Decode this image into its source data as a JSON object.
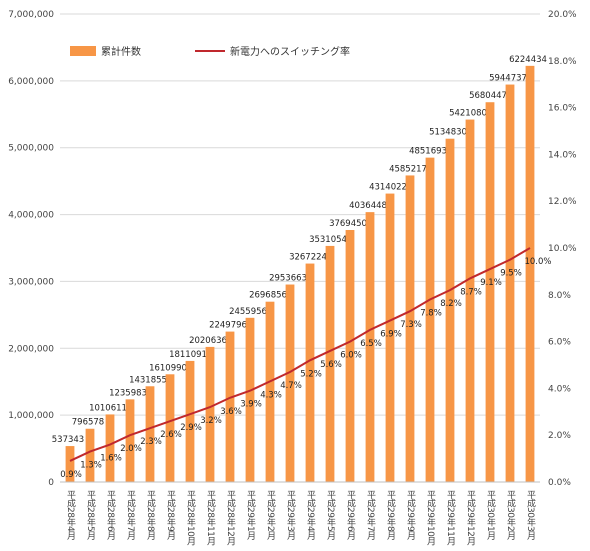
{
  "chart_data": {
    "type": "bar",
    "categories": [
      "平成28年4月",
      "平成28年5月",
      "平成28年6月",
      "平成28年7月",
      "平成28年8月",
      "平成28年9月",
      "平成28年10月",
      "平成28年11月",
      "平成28年12月",
      "平成29年1月",
      "平成29年2月",
      "平成29年3月",
      "平成29年4月",
      "平成29年5月",
      "平成29年6月",
      "平成29年7月",
      "平成29年8月",
      "平成29年9月",
      "平成29年10月",
      "平成29年11月",
      "平成29年12月",
      "平成30年1月",
      "平成30年2月",
      "平成30年3月"
    ],
    "series": [
      {
        "name": "累計件数",
        "type": "bar",
        "axis": "left",
        "color": "#F79646",
        "values": [
          537343,
          796578,
          1010611,
          1235983,
          1431855,
          1610990,
          1811091,
          2020636,
          2249796,
          2455956,
          2696856,
          2953663,
          3267224,
          3531054,
          3769450,
          4036448,
          4314022,
          4585217,
          4851693,
          5134830,
          5421080,
          5680447,
          5944737,
          6224434
        ],
        "labels": [
          "537343",
          "796578",
          "1010611",
          "1235983",
          "1431855",
          "1610990",
          "1811091",
          "2020636",
          "2249796",
          "2455956",
          "2696856",
          "2953663",
          "3267224",
          "3531054",
          "3769450",
          "4036448",
          "4314022",
          "4585217",
          "4851693",
          "5134830",
          "5421080",
          "5680447",
          "5944737",
          "6224434"
        ]
      },
      {
        "name": "新電力へのスイッチング率",
        "type": "line",
        "axis": "right",
        "color": "#C0282D",
        "values": [
          0.9,
          1.3,
          1.6,
          2.0,
          2.3,
          2.6,
          2.9,
          3.2,
          3.6,
          3.9,
          4.3,
          4.7,
          5.2,
          5.6,
          6.0,
          6.5,
          6.9,
          7.3,
          7.8,
          8.2,
          8.7,
          9.1,
          9.5,
          10.0
        ],
        "labels": [
          "0.9%",
          "1.3%",
          "1.6%",
          "2.0%",
          "2.3%",
          "2.6%",
          "2.9%",
          "3.2%",
          "3.6%",
          "3.9%",
          "4.3%",
          "4.7%",
          "5.2%",
          "5.6%",
          "6.0%",
          "6.5%",
          "6.9%",
          "7.3%",
          "7.8%",
          "8.2%",
          "8.7%",
          "9.1%",
          "9.5%",
          "10.0%"
        ]
      }
    ],
    "left_axis": {
      "ylim": [
        0,
        7000000
      ],
      "ticks": [
        "0",
        "1,000,000",
        "2,000,000",
        "3,000,000",
        "4,000,000",
        "5,000,000",
        "6,000,000",
        "7,000,000"
      ]
    },
    "right_axis": {
      "ylim": [
        0,
        20
      ],
      "ticks": [
        "0.0%",
        "2.0%",
        "4.0%",
        "6.0%",
        "8.0%",
        "10.0%",
        "12.0%",
        "14.0%",
        "16.0%",
        "18.0%",
        "20.0%"
      ]
    },
    "grid": "horizontal",
    "legend": "top-left",
    "title": "",
    "xlabel": "",
    "ylabel": ""
  }
}
